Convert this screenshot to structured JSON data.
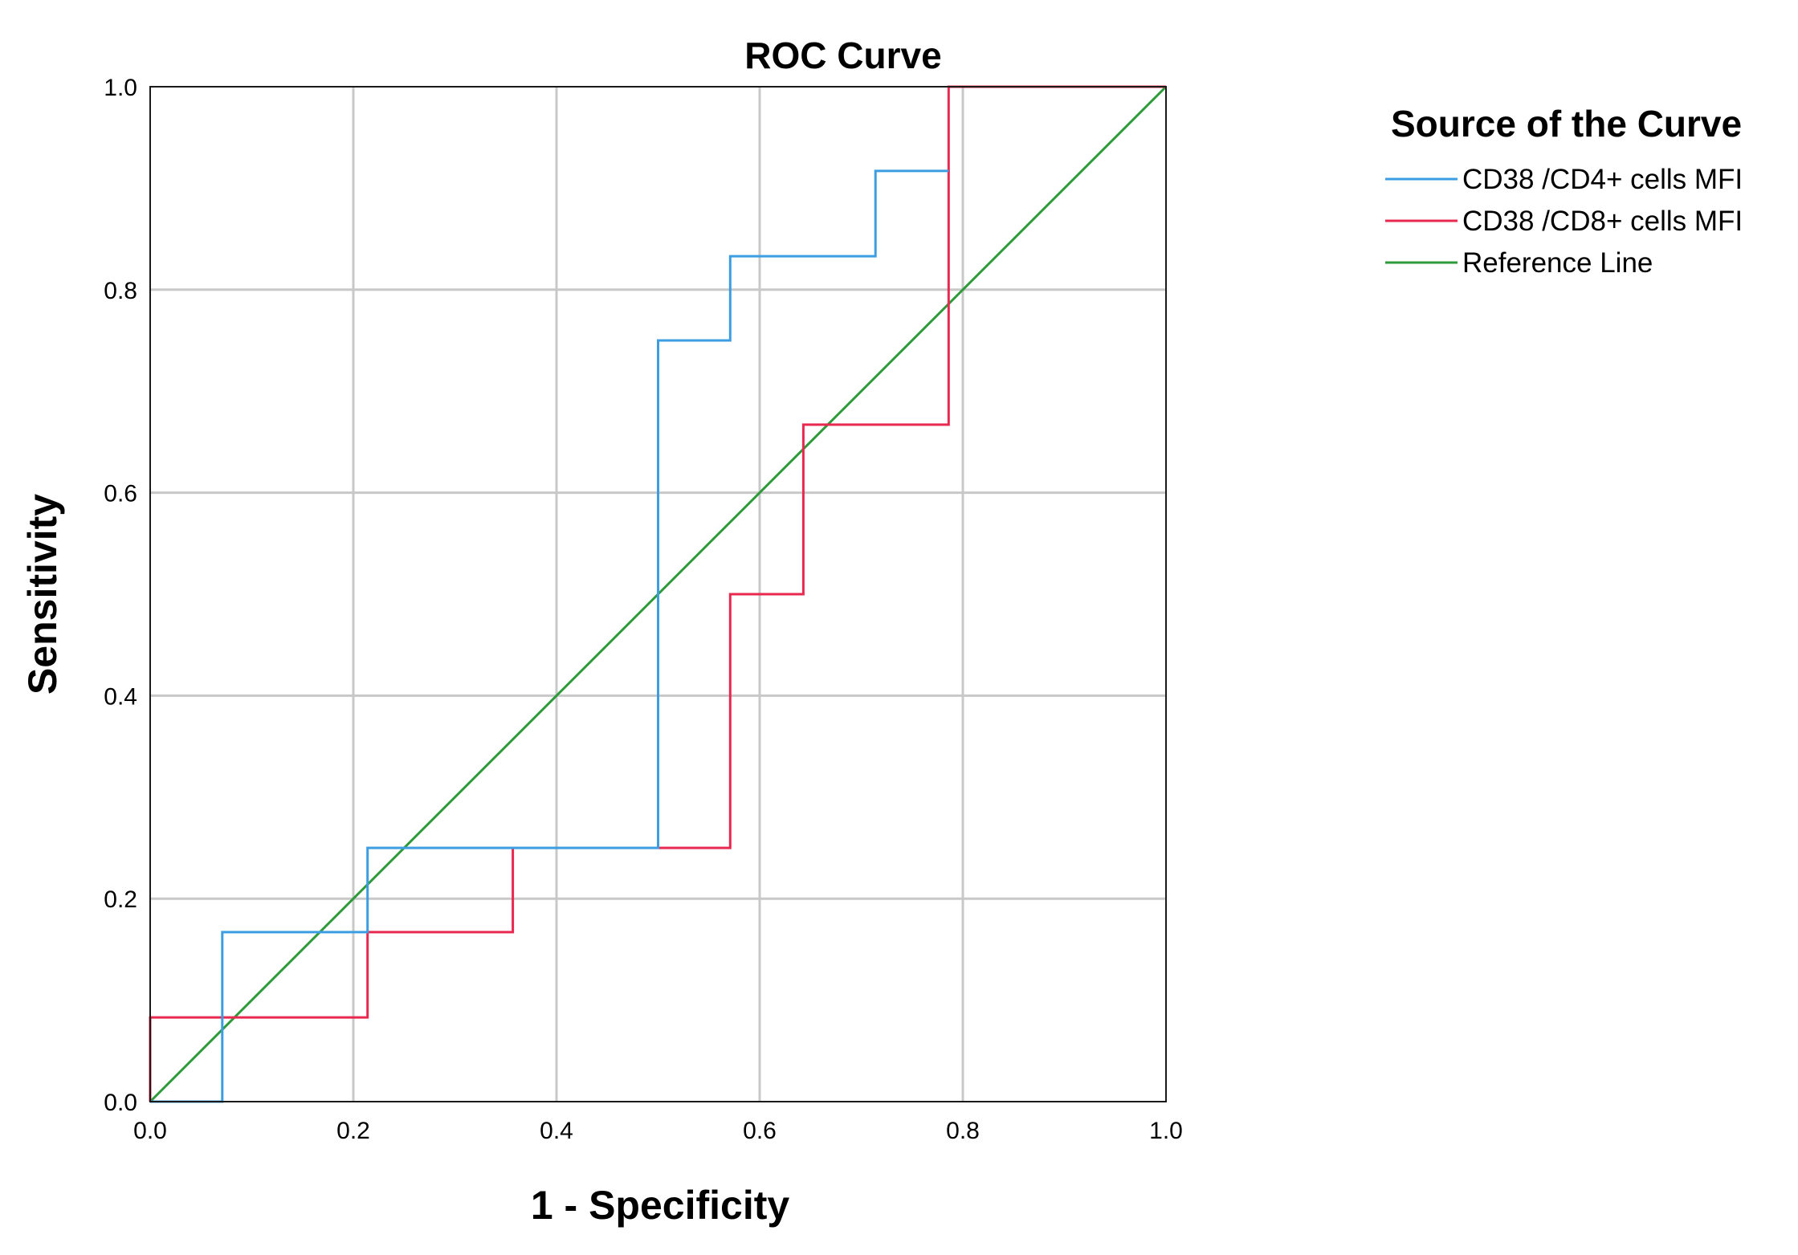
{
  "chart_data": {
    "type": "line",
    "title": "ROC Curve",
    "xlabel": "1 - Specificity",
    "ylabel": "Sensitivity",
    "xlim": [
      0.0,
      1.0
    ],
    "ylim": [
      0.0,
      1.0
    ],
    "grid": true,
    "x_ticks": [
      "0.0",
      "0.2",
      "0.4",
      "0.6",
      "0.8",
      "1.0"
    ],
    "y_ticks": [
      "0.0",
      "0.2",
      "0.4",
      "0.6",
      "0.8",
      "1.0"
    ],
    "legend": {
      "title": "Source of the Curve",
      "position": "right",
      "entries": [
        "CD38 /CD4+ cells MFI",
        "CD38 /CD8+ cells MFI",
        "Reference Line"
      ]
    },
    "series": [
      {
        "name": "CD38 /CD4+ cells MFI",
        "color": "#3c9de0",
        "step": true,
        "x": [
          0.0,
          0.071,
          0.071,
          0.214,
          0.214,
          0.5,
          0.5,
          0.571,
          0.571,
          0.714,
          0.714,
          0.786
        ],
        "y": [
          0.0,
          0.0,
          0.167,
          0.167,
          0.25,
          0.25,
          0.75,
          0.75,
          0.833,
          0.833,
          0.917,
          0.917
        ]
      },
      {
        "name": "CD38 /CD8+ cells MFI",
        "color": "#e8284f",
        "step": true,
        "x": [
          0.0,
          0.0,
          0.214,
          0.214,
          0.357,
          0.357,
          0.571,
          0.571,
          0.643,
          0.643,
          0.786,
          0.786,
          1.0
        ],
        "y": [
          0.0,
          0.083,
          0.083,
          0.167,
          0.167,
          0.25,
          0.25,
          0.5,
          0.5,
          0.667,
          0.667,
          1.0,
          1.0
        ]
      },
      {
        "name": "Reference Line",
        "color": "#2e9a3a",
        "step": false,
        "x": [
          0.0,
          1.0
        ],
        "y": [
          0.0,
          1.0
        ]
      }
    ]
  }
}
